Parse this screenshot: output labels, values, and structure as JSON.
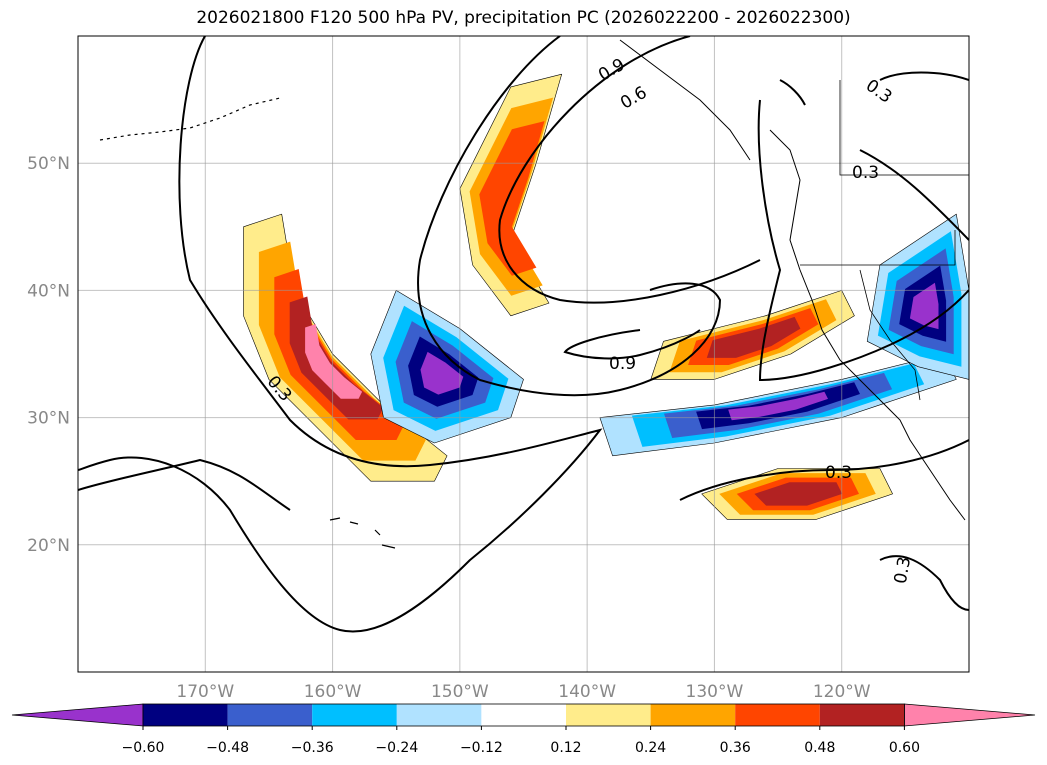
{
  "chart_data": {
    "type": "contour-map",
    "title": "2026021800 F120 500 hPa PV, precipitation PC (2026022200 - 2026022300)",
    "lon_range": [
      -180,
      -110
    ],
    "lat_range": [
      10,
      60
    ],
    "x_ticks": [
      "170°W",
      "160°W",
      "150°W",
      "140°W",
      "130°W",
      "120°W"
    ],
    "y_ticks": [
      "20°N",
      "30°N",
      "40°N",
      "50°N"
    ],
    "pv_contour_levels": [
      "0.3",
      "0.6",
      "0.9"
    ],
    "colorbar": {
      "ticks": [
        "−0.60",
        "−0.48",
        "−0.36",
        "−0.24",
        "−0.12",
        "0.12",
        "0.24",
        "0.36",
        "0.48",
        "0.60"
      ],
      "colors": [
        "#9932cc",
        "#000080",
        "#3a5fcd",
        "#00bfff",
        "#b0e2ff",
        "#ffffff",
        "#ffec8b",
        "#ffa500",
        "#ff4500",
        "#b22222",
        "#ff82ab"
      ],
      "extend": "both"
    },
    "grid": true,
    "features": [
      {
        "name": "band-160w",
        "sign": "positive",
        "peak": 0.6,
        "center": [
          -161,
          35
        ]
      },
      {
        "name": "band-148w",
        "sign": "positive",
        "peak": 0.36,
        "center": [
          -148,
          48
        ]
      },
      {
        "name": "band-130w",
        "sign": "positive",
        "peak": 0.48,
        "center": [
          -128,
          37
        ]
      },
      {
        "name": "band-125w-26n",
        "sign": "positive",
        "peak": 0.48,
        "center": [
          -125,
          25
        ]
      },
      {
        "name": "blob-150w",
        "sign": "negative",
        "peak": -0.6,
        "center": [
          -150,
          35
        ]
      },
      {
        "name": "band-130w-31n",
        "sign": "negative",
        "peak": -0.6,
        "center": [
          -125,
          30
        ]
      },
      {
        "name": "blob-115w-36n",
        "sign": "negative",
        "peak": -0.6,
        "center": [
          -112,
          37
        ]
      }
    ]
  }
}
